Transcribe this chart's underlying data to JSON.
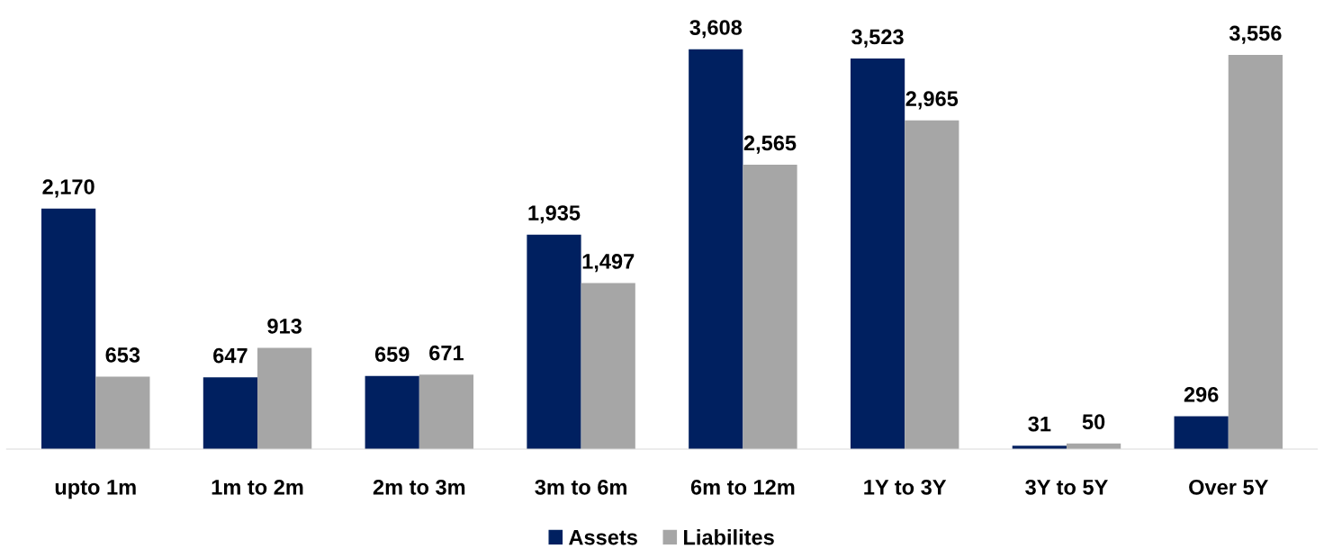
{
  "chart_data": {
    "type": "bar",
    "categories": [
      "upto 1m",
      "1m to 2m",
      "2m to 3m",
      "3m to 6m",
      "6m to 12m",
      "1Y to 3Y",
      "3Y to 5Y",
      "Over 5Y"
    ],
    "series": [
      {
        "name": "Assets",
        "color": "#002060",
        "values": [
          2170,
          647,
          659,
          1935,
          3608,
          3523,
          31,
          296
        ],
        "value_labels": [
          "2,170",
          "647",
          "659",
          "1,935",
          "3,608",
          "3,523",
          "31",
          "296"
        ]
      },
      {
        "name": "Liabilites",
        "color": "#a6a6a6",
        "values": [
          653,
          913,
          671,
          1497,
          2565,
          2965,
          50,
          3556
        ],
        "value_labels": [
          "653",
          "913",
          "671",
          "1,497",
          "2,565",
          "2,965",
          "50",
          "3,556"
        ]
      }
    ],
    "legend": "bottom",
    "grid": false,
    "tick_labels": "x"
  }
}
